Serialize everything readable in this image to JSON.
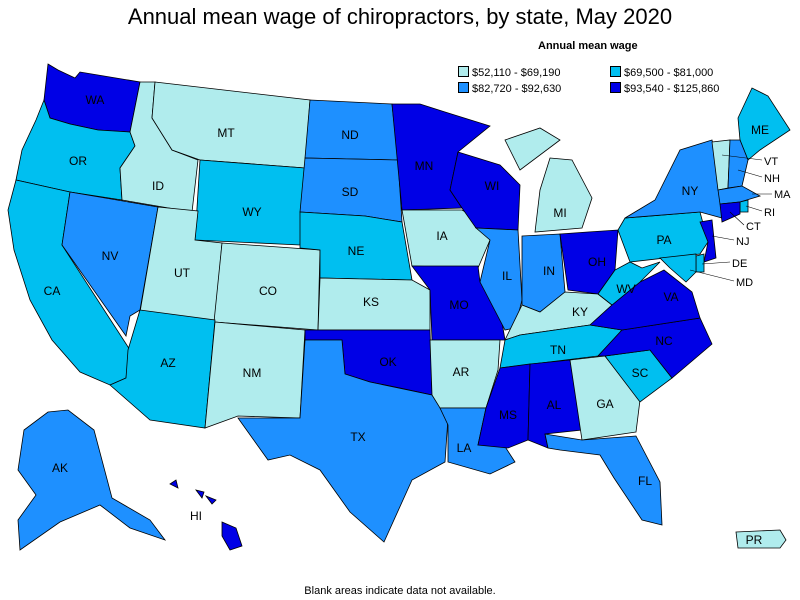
{
  "title": "Annual mean wage of chiropractors, by state, May 2020",
  "legend": {
    "title": "Annual mean wage",
    "items": [
      {
        "label": "$52,110 - $69,190",
        "color": "#b0eced"
      },
      {
        "label": "$69,500 - $81,000",
        "color": "#00bff0"
      },
      {
        "label": "$82,720 - $92,630",
        "color": "#1e90ff"
      },
      {
        "label": "$93,540 - $125,860",
        "color": "#0000e6"
      }
    ]
  },
  "footnote": "Blank areas indicate data not available.",
  "states": {
    "WA": {
      "label": "WA",
      "tier": 3
    },
    "OR": {
      "label": "OR",
      "tier": 1
    },
    "CA": {
      "label": "CA",
      "tier": 1
    },
    "ID": {
      "label": "ID",
      "tier": 0
    },
    "NV": {
      "label": "NV",
      "tier": 2
    },
    "MT": {
      "label": "MT",
      "tier": 0
    },
    "WY": {
      "label": "WY",
      "tier": 1
    },
    "UT": {
      "label": "UT",
      "tier": 0
    },
    "CO": {
      "label": "CO",
      "tier": 0
    },
    "AZ": {
      "label": "AZ",
      "tier": 1
    },
    "NM": {
      "label": "NM",
      "tier": 0
    },
    "ND": {
      "label": "ND",
      "tier": 2
    },
    "SD": {
      "label": "SD",
      "tier": 2
    },
    "NE": {
      "label": "NE",
      "tier": 1
    },
    "KS": {
      "label": "KS",
      "tier": 0
    },
    "OK": {
      "label": "OK",
      "tier": 3
    },
    "TX": {
      "label": "TX",
      "tier": 2
    },
    "MN": {
      "label": "MN",
      "tier": 3
    },
    "IA": {
      "label": "IA",
      "tier": 0
    },
    "MO": {
      "label": "MO",
      "tier": 3
    },
    "AR": {
      "label": "AR",
      "tier": 0
    },
    "LA": {
      "label": "LA",
      "tier": 2
    },
    "WI": {
      "label": "WI",
      "tier": 3
    },
    "IL": {
      "label": "IL",
      "tier": 2
    },
    "MI": {
      "label": "MI",
      "tier": 0
    },
    "IN": {
      "label": "IN",
      "tier": 2
    },
    "OH": {
      "label": "OH",
      "tier": 3
    },
    "KY": {
      "label": "KY",
      "tier": 0
    },
    "TN": {
      "label": "TN",
      "tier": 1
    },
    "MS": {
      "label": "MS",
      "tier": 3
    },
    "AL": {
      "label": "AL",
      "tier": 3
    },
    "GA": {
      "label": "GA",
      "tier": 0
    },
    "FL": {
      "label": "FL",
      "tier": 2
    },
    "SC": {
      "label": "SC",
      "tier": 1
    },
    "NC": {
      "label": "NC",
      "tier": 3
    },
    "VA": {
      "label": "VA",
      "tier": 3
    },
    "WV": {
      "label": "WV",
      "tier": 1
    },
    "PA": {
      "label": "PA",
      "tier": 1
    },
    "NY": {
      "label": "NY",
      "tier": 2
    },
    "ME": {
      "label": "ME",
      "tier": 1
    },
    "VT": {
      "label": "VT",
      "tier": 0
    },
    "NH": {
      "label": "NH",
      "tier": 2
    },
    "MA": {
      "label": "MA",
      "tier": 2
    },
    "RI": {
      "label": "RI",
      "tier": 1
    },
    "CT": {
      "label": "CT",
      "tier": 3
    },
    "NJ": {
      "label": "NJ",
      "tier": 3
    },
    "DE": {
      "label": "DE",
      "tier": 1
    },
    "MD": {
      "label": "MD",
      "tier": 1
    },
    "AK": {
      "label": "AK",
      "tier": 2
    },
    "HI": {
      "label": "HI",
      "tier": 3
    },
    "PR": {
      "label": "PR",
      "tier": 0
    }
  }
}
